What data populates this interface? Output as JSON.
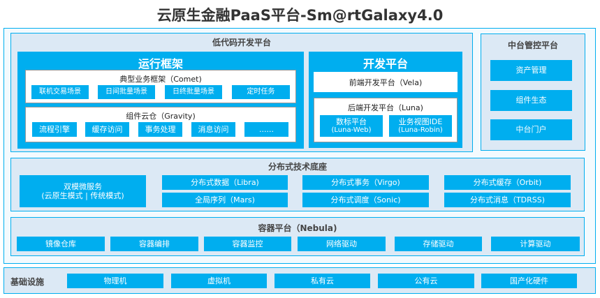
{
  "title": "云原生金融PaaS平台-Sm@rtGalaxy4.0",
  "colors": {
    "accent": "#00aeef",
    "panel": "#dce9f5"
  },
  "lowcode": {
    "title": "低代码开发平台",
    "runtime": {
      "title": "运行框架",
      "comet": {
        "title": "典型业务框架（Comet)",
        "items": [
          "联机交易场景",
          "日间批量场景",
          "日终批量场景",
          "定时任务"
        ]
      },
      "gravity": {
        "title": "组件云仓（Gravity)",
        "items": [
          "流程引擎",
          "缓存访问",
          "事务处理",
          "消息访问",
          "......"
        ]
      }
    },
    "dev": {
      "title": "开发平台",
      "vela": "前端开发平台（Vela)",
      "luna": {
        "title": "后端开发平台（Luna)",
        "items": [
          {
            "name": "数标平台",
            "sub": "(Luna-Web)"
          },
          {
            "name": "业务视图IDE",
            "sub": "(Luna-Robin)"
          }
        ]
      }
    }
  },
  "midplatform": {
    "title": "中台管控平台",
    "items": [
      "资产管理",
      "组件生态",
      "中台门户"
    ]
  },
  "distributed": {
    "title": "分布式技术底座",
    "dual": [
      "双模微服务",
      "(云原生模式 | 传统模式)"
    ],
    "items": [
      "分布式数据（Libra)",
      "分布式事务（Virgo)",
      "分布式缓存（Orbit)",
      "全局序列（Mars)",
      "分布式调度（Sonic)",
      "分布式消息（TDRSS)"
    ]
  },
  "container": {
    "title": "容器平台（Nebula)",
    "items": [
      "镜像仓库",
      "容器编排",
      "容器监控",
      "网络驱动",
      "存储驱动",
      "计算驱动"
    ]
  },
  "infra": {
    "title": "基础设施",
    "items": [
      "物理机",
      "虚拟机",
      "私有云",
      "公有云",
      "国产化硬件"
    ]
  }
}
